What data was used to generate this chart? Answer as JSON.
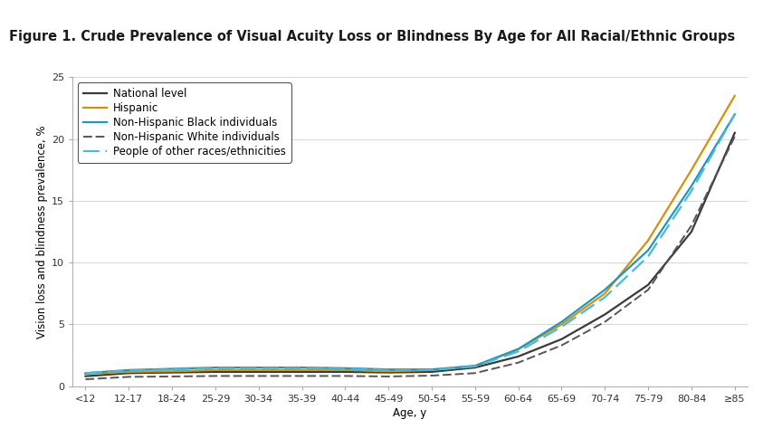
{
  "title": "Figure 1. Crude Prevalence of Visual Acuity Loss or Blindness By Age for All Racial/Ethnic Groups",
  "xlabel": "Age, y",
  "ylabel": "Vision loss and blindness prevalence, %",
  "x_labels": [
    "<12",
    "12-17",
    "18-24",
    "25-29",
    "30-34",
    "35-39",
    "40-44",
    "45-49",
    "50-54",
    "55-59",
    "60-64",
    "65-69",
    "70-74",
    "75-79",
    "80-84",
    "≥85"
  ],
  "ylim": [
    0,
    25
  ],
  "yticks": [
    0,
    5,
    10,
    15,
    20,
    25
  ],
  "series": {
    "National level": {
      "color": "#3a3a3a",
      "linestyle": "solid",
      "linewidth": 1.6,
      "values": [
        0.8,
        1.05,
        1.1,
        1.15,
        1.15,
        1.15,
        1.15,
        1.1,
        1.15,
        1.5,
        2.4,
        3.8,
        5.8,
        8.2,
        12.5,
        20.5
      ]
    },
    "Hispanic": {
      "color": "#d4910a",
      "linestyle": "solid",
      "linewidth": 1.6,
      "values": [
        1.0,
        1.15,
        1.2,
        1.3,
        1.3,
        1.3,
        1.3,
        1.2,
        1.3,
        1.6,
        3.0,
        5.0,
        7.5,
        11.8,
        17.5,
        23.5
      ]
    },
    "Non-Hispanic Black individuals": {
      "color": "#1a9ac0",
      "linestyle": "solid",
      "linewidth": 1.6,
      "values": [
        1.05,
        1.3,
        1.4,
        1.5,
        1.5,
        1.5,
        1.45,
        1.35,
        1.35,
        1.65,
        3.0,
        5.2,
        7.8,
        11.0,
        16.2,
        22.0
      ]
    },
    "Non-Hispanic White individuals": {
      "color": "#555555",
      "linestyle": "dashed",
      "linewidth": 1.4,
      "dash_pattern": [
        5,
        2
      ],
      "values": [
        0.55,
        0.75,
        0.78,
        0.82,
        0.82,
        0.82,
        0.82,
        0.78,
        0.85,
        1.05,
        1.9,
        3.3,
        5.2,
        7.8,
        13.0,
        20.2
      ]
    },
    "People of other races/ethnicities": {
      "color": "#4ab8d8",
      "linestyle": "dashed",
      "linewidth": 1.6,
      "dash_pattern": [
        8,
        3
      ],
      "values": [
        1.05,
        1.25,
        1.35,
        1.45,
        1.45,
        1.45,
        1.4,
        1.3,
        1.3,
        1.6,
        2.8,
        4.8,
        7.2,
        10.5,
        15.8,
        22.0
      ]
    }
  },
  "green_bar_color": "#6a9a3a",
  "separator_color": "#333333",
  "background_color": "#ffffff",
  "title_fontsize": 10.5,
  "axis_label_fontsize": 8.5,
  "tick_fontsize": 8.0,
  "legend_fontsize": 8.5
}
